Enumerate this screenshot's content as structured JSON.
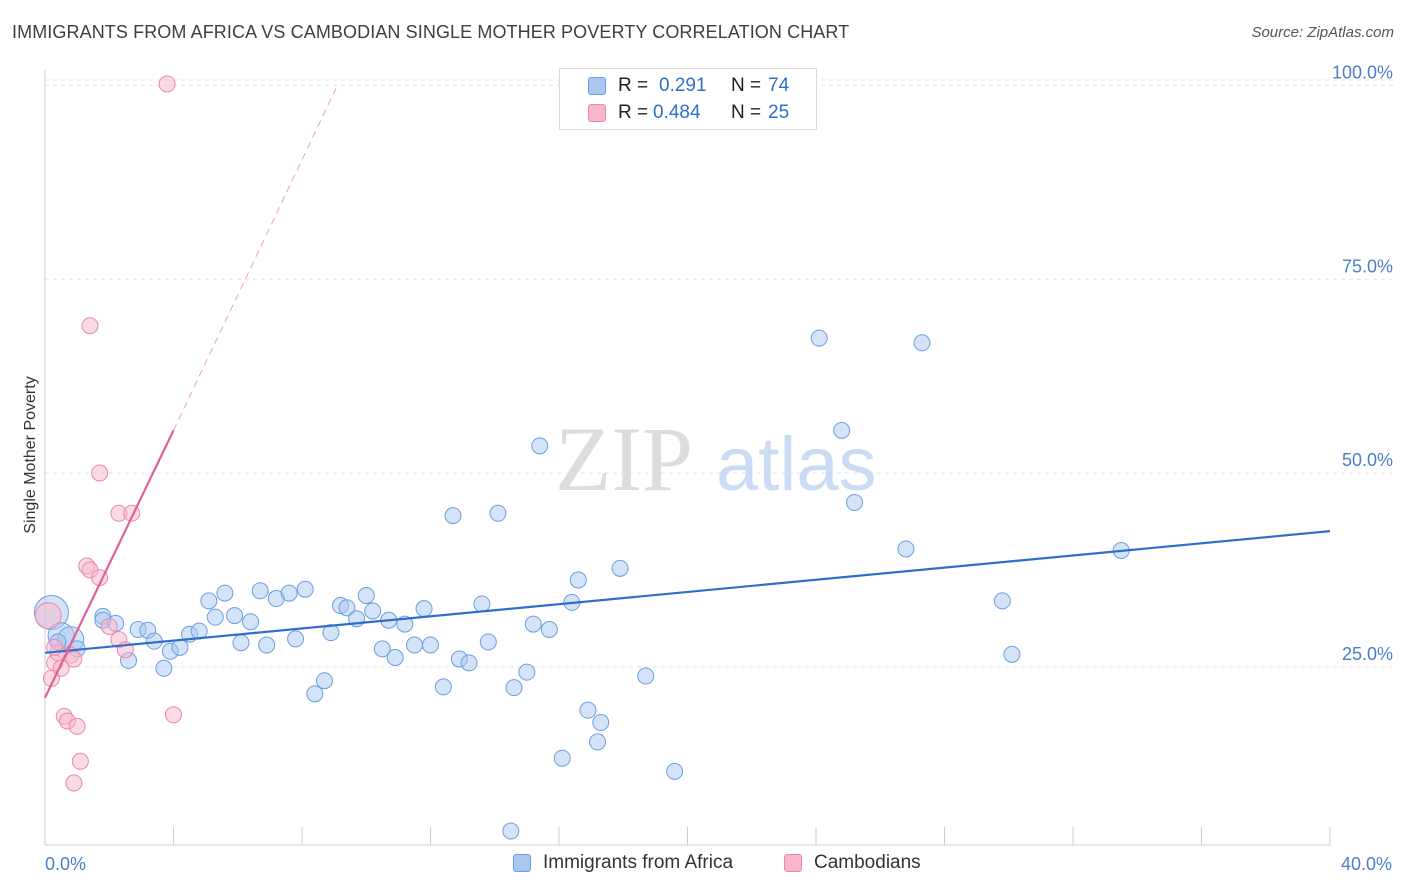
{
  "header": {
    "title": "IMMIGRANTS FROM AFRICA VS CAMBODIAN SINGLE MOTHER POVERTY CORRELATION CHART",
    "source": "Source: ZipAtlas.com"
  },
  "watermark": {
    "zip": "ZIP",
    "atlas": "atlas"
  },
  "legend": {
    "rows": [
      {
        "r_label": "R =",
        "r_value": "0.291",
        "n_label": "N =",
        "n_value": "74",
        "color": "#a9c8f0"
      },
      {
        "r_label": "R =",
        "r_value": "0.484",
        "n_label": "N =",
        "n_value": "25",
        "color": "#f7b6cb"
      }
    ]
  },
  "bottom_legend": [
    {
      "label": "Immigrants from Africa",
      "color": "#a9c8f0"
    },
    {
      "label": "Cambodians",
      "color": "#f7b6cb"
    }
  ],
  "chart_data": {
    "type": "scatter",
    "ylabel": "Single Mother Poverty",
    "x_range": [
      0,
      40
    ],
    "y_range": [
      2,
      102
    ],
    "x_tick_labels": [
      "0.0%",
      "40.0%"
    ],
    "y_ticks": [
      {
        "value": 25,
        "label": "25.0%"
      },
      {
        "value": 50,
        "label": "50.0%"
      },
      {
        "value": 75,
        "label": "75.0%"
      },
      {
        "value": 100,
        "label": "100.0%"
      }
    ],
    "grid": true,
    "series": [
      {
        "name": "Immigrants from Africa",
        "color": "#a9c8f0",
        "stroke": "#6a9fe0",
        "trend": {
          "x": [
            0,
            40
          ],
          "y": [
            26.8,
            42.5
          ],
          "color": "#2f6fca"
        },
        "points": [
          {
            "x": 0.2,
            "y": 32.0,
            "s": 3
          },
          {
            "x": 0.5,
            "y": 29.0,
            "s": 2
          },
          {
            "x": 0.8,
            "y": 28.5,
            "s": 2
          },
          {
            "x": 1.0,
            "y": 27.3,
            "s": 1
          },
          {
            "x": 1.8,
            "y": 31.5,
            "s": 1
          },
          {
            "x": 1.8,
            "y": 31.0,
            "s": 1
          },
          {
            "x": 2.6,
            "y": 25.8,
            "s": 1
          },
          {
            "x": 2.9,
            "y": 29.8,
            "s": 1
          },
          {
            "x": 3.2,
            "y": 29.7,
            "s": 1
          },
          {
            "x": 3.4,
            "y": 28.3,
            "s": 1
          },
          {
            "x": 3.7,
            "y": 24.8,
            "s": 1
          },
          {
            "x": 3.9,
            "y": 27.0,
            "s": 1
          },
          {
            "x": 4.2,
            "y": 27.5,
            "s": 1
          },
          {
            "x": 4.5,
            "y": 29.2,
            "s": 1
          },
          {
            "x": 4.8,
            "y": 29.6,
            "s": 1
          },
          {
            "x": 5.1,
            "y": 33.5,
            "s": 1
          },
          {
            "x": 5.3,
            "y": 31.4,
            "s": 1
          },
          {
            "x": 5.6,
            "y": 34.5,
            "s": 1
          },
          {
            "x": 5.9,
            "y": 31.6,
            "s": 1
          },
          {
            "x": 6.1,
            "y": 28.1,
            "s": 1
          },
          {
            "x": 6.4,
            "y": 30.8,
            "s": 1
          },
          {
            "x": 6.7,
            "y": 34.8,
            "s": 1
          },
          {
            "x": 6.9,
            "y": 27.8,
            "s": 1
          },
          {
            "x": 7.2,
            "y": 33.8,
            "s": 1
          },
          {
            "x": 7.6,
            "y": 34.5,
            "s": 1
          },
          {
            "x": 7.8,
            "y": 28.6,
            "s": 1
          },
          {
            "x": 8.1,
            "y": 35.0,
            "s": 1
          },
          {
            "x": 8.4,
            "y": 21.5,
            "s": 1
          },
          {
            "x": 8.7,
            "y": 23.2,
            "s": 1
          },
          {
            "x": 8.9,
            "y": 29.4,
            "s": 1
          },
          {
            "x": 9.2,
            "y": 32.9,
            "s": 1
          },
          {
            "x": 9.4,
            "y": 32.6,
            "s": 1
          },
          {
            "x": 9.7,
            "y": 31.2,
            "s": 1
          },
          {
            "x": 10.0,
            "y": 34.2,
            "s": 1
          },
          {
            "x": 10.2,
            "y": 32.2,
            "s": 1
          },
          {
            "x": 10.5,
            "y": 27.3,
            "s": 1
          },
          {
            "x": 10.7,
            "y": 31.0,
            "s": 1
          },
          {
            "x": 10.9,
            "y": 26.2,
            "s": 1
          },
          {
            "x": 11.2,
            "y": 30.5,
            "s": 1
          },
          {
            "x": 11.5,
            "y": 27.8,
            "s": 1
          },
          {
            "x": 11.8,
            "y": 32.5,
            "s": 1
          },
          {
            "x": 12.0,
            "y": 27.8,
            "s": 1
          },
          {
            "x": 12.4,
            "y": 22.4,
            "s": 1
          },
          {
            "x": 12.7,
            "y": 44.5,
            "s": 1
          },
          {
            "x": 12.9,
            "y": 26.0,
            "s": 1
          },
          {
            "x": 13.2,
            "y": 25.5,
            "s": 1
          },
          {
            "x": 13.6,
            "y": 33.1,
            "s": 1
          },
          {
            "x": 13.8,
            "y": 28.2,
            "s": 1
          },
          {
            "x": 14.1,
            "y": 44.8,
            "s": 1
          },
          {
            "x": 14.5,
            "y": 3.8,
            "s": 1
          },
          {
            "x": 14.6,
            "y": 22.3,
            "s": 1
          },
          {
            "x": 15.0,
            "y": 24.3,
            "s": 1
          },
          {
            "x": 15.2,
            "y": 30.5,
            "s": 1
          },
          {
            "x": 15.4,
            "y": 53.5,
            "s": 1
          },
          {
            "x": 15.7,
            "y": 29.8,
            "s": 1
          },
          {
            "x": 16.1,
            "y": 13.2,
            "s": 1
          },
          {
            "x": 16.4,
            "y": 33.3,
            "s": 1
          },
          {
            "x": 16.6,
            "y": 36.2,
            "s": 1
          },
          {
            "x": 16.9,
            "y": 19.4,
            "s": 1
          },
          {
            "x": 17.2,
            "y": 15.3,
            "s": 1
          },
          {
            "x": 17.3,
            "y": 17.8,
            "s": 1
          },
          {
            "x": 17.9,
            "y": 37.7,
            "s": 1
          },
          {
            "x": 18.7,
            "y": 23.8,
            "s": 1
          },
          {
            "x": 19.6,
            "y": 11.5,
            "s": 1
          },
          {
            "x": 24.1,
            "y": 67.4,
            "s": 1
          },
          {
            "x": 24.8,
            "y": 55.5,
            "s": 1
          },
          {
            "x": 25.2,
            "y": 46.2,
            "s": 1
          },
          {
            "x": 26.8,
            "y": 40.2,
            "s": 1
          },
          {
            "x": 27.3,
            "y": 66.8,
            "s": 1
          },
          {
            "x": 29.8,
            "y": 33.5,
            "s": 1
          },
          {
            "x": 33.5,
            "y": 40.0,
            "s": 1
          },
          {
            "x": 30.1,
            "y": 26.6,
            "s": 1
          },
          {
            "x": 0.4,
            "y": 28.2,
            "s": 1
          },
          {
            "x": 2.2,
            "y": 30.6,
            "s": 1
          }
        ]
      },
      {
        "name": "Cambodians",
        "color": "#f7b6cb",
        "stroke": "#e889a8",
        "trend": {
          "x": [
            0,
            4.0
          ],
          "y": [
            21.0,
            55.5
          ],
          "color": "#e0609a",
          "ext_x": [
            4.0,
            9.1
          ],
          "ext_y": [
            55.5,
            100.0
          ]
        },
        "points": [
          {
            "x": 0.1,
            "y": 31.6,
            "s": 2
          },
          {
            "x": 0.2,
            "y": 23.5,
            "s": 1
          },
          {
            "x": 0.3,
            "y": 25.5,
            "s": 1
          },
          {
            "x": 0.5,
            "y": 24.8,
            "s": 1
          },
          {
            "x": 0.6,
            "y": 18.6,
            "s": 1
          },
          {
            "x": 0.7,
            "y": 18.0,
            "s": 1
          },
          {
            "x": 0.8,
            "y": 26.5,
            "s": 1
          },
          {
            "x": 0.9,
            "y": 26.0,
            "s": 1
          },
          {
            "x": 0.9,
            "y": 10.0,
            "s": 1
          },
          {
            "x": 1.0,
            "y": 17.3,
            "s": 1
          },
          {
            "x": 1.1,
            "y": 12.8,
            "s": 1
          },
          {
            "x": 1.3,
            "y": 38.0,
            "s": 1
          },
          {
            "x": 1.4,
            "y": 37.5,
            "s": 1
          },
          {
            "x": 1.4,
            "y": 69.0,
            "s": 1
          },
          {
            "x": 1.7,
            "y": 36.5,
            "s": 1
          },
          {
            "x": 1.7,
            "y": 50.0,
            "s": 1
          },
          {
            "x": 2.0,
            "y": 30.2,
            "s": 1
          },
          {
            "x": 2.3,
            "y": 28.5,
            "s": 1
          },
          {
            "x": 2.3,
            "y": 44.8,
            "s": 1
          },
          {
            "x": 2.5,
            "y": 27.2,
            "s": 1
          },
          {
            "x": 2.7,
            "y": 44.8,
            "s": 1
          },
          {
            "x": 3.8,
            "y": 100.2,
            "s": 1
          },
          {
            "x": 4.0,
            "y": 18.8,
            "s": 1
          },
          {
            "x": 0.4,
            "y": 26.8,
            "s": 1
          },
          {
            "x": 0.3,
            "y": 27.5,
            "s": 1
          }
        ]
      }
    ]
  }
}
